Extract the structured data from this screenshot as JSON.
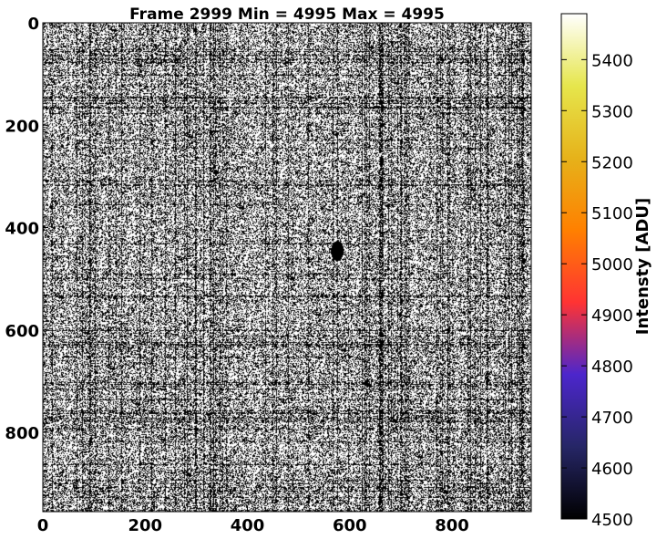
{
  "chart_data": {
    "type": "heatmap",
    "title": "Frame 2999 Min = 4995 Max = 4995",
    "image_extent": {
      "x": [
        0,
        955
      ],
      "y": [
        0,
        955
      ]
    },
    "y_axis_inverted": true,
    "x_ticks": [
      0,
      200,
      400,
      600,
      800
    ],
    "y_ticks": [
      0,
      200,
      400,
      600,
      800
    ],
    "x_tick_labels": [
      "0",
      "200",
      "400",
      "600",
      "800"
    ],
    "y_tick_labels": [
      "0",
      "200",
      "400",
      "600",
      "800"
    ],
    "pixel_values": {
      "min": 4995,
      "max": 4995
    },
    "feature": {
      "description_value": "dark blob",
      "x": 575,
      "y": 445
    },
    "colorbar": {
      "label": "Intensty [ADU]",
      "range": [
        4500,
        5490
      ],
      "colormap": "CMRmap",
      "ticks": [
        4500,
        4600,
        4700,
        4800,
        4900,
        5000,
        5100,
        5200,
        5300,
        5400
      ],
      "tick_labels": [
        "4500",
        "4600",
        "4700",
        "4800",
        "4900",
        "5000",
        "5100",
        "5200",
        "5300",
        "5400"
      ],
      "colors": [
        "#000000",
        "#262666",
        "#4c26cc",
        "#ff3333",
        "#ff8000",
        "#e6b21a",
        "#e6e64c",
        "#ffffff"
      ]
    }
  }
}
